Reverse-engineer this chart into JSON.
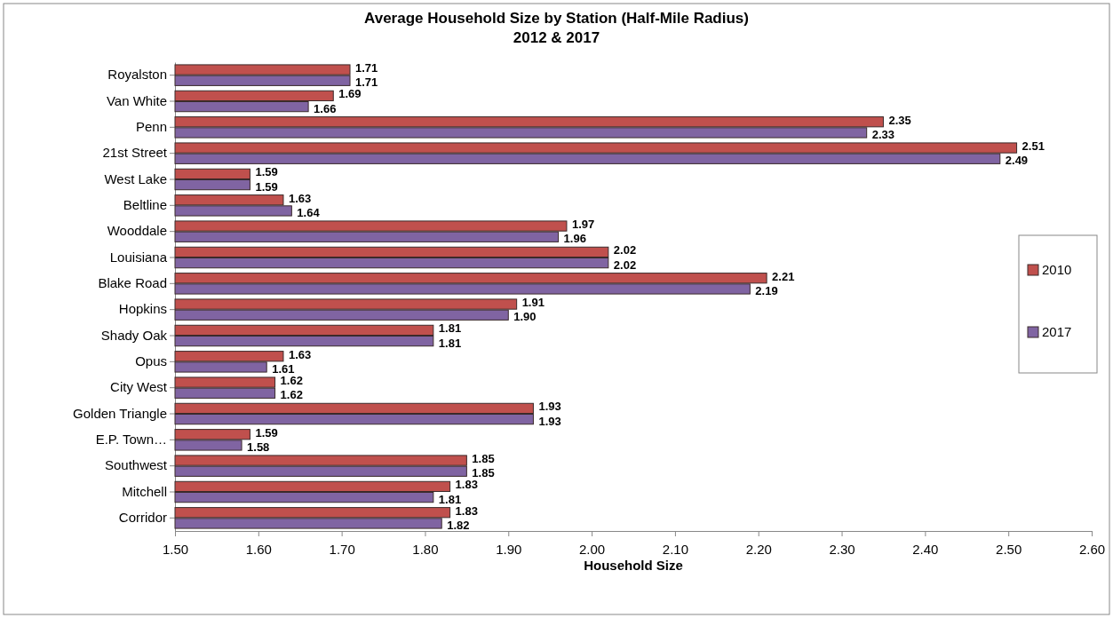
{
  "chart_data": {
    "type": "bar",
    "orientation": "horizontal",
    "title": "Average Household Size by Station (Half-Mile Radius)",
    "subtitle": "2012 & 2017",
    "xlabel": "Household Size",
    "categories": [
      "Royalston",
      "Van White",
      "Penn",
      "21st Street",
      "West Lake",
      "Beltline",
      "Wooddale",
      "Louisiana",
      "Blake Road",
      "Hopkins",
      "Shady Oak",
      "Opus",
      "City West",
      "Golden Triangle",
      "E.P. Town…",
      "Southwest",
      "Mitchell",
      "Corridor"
    ],
    "series": [
      {
        "name": "2010",
        "color": "#c0504d",
        "values": [
          1.71,
          1.69,
          2.35,
          2.51,
          1.59,
          1.63,
          1.97,
          2.02,
          2.21,
          1.91,
          1.81,
          1.63,
          1.62,
          1.93,
          1.59,
          1.85,
          1.83,
          1.83
        ],
        "value_labels": [
          "1.71",
          "1.69",
          "2.35",
          "2.51",
          "1.59",
          "1.63",
          "1.97",
          "2.02",
          "2.21",
          "1.91",
          "1.81",
          "1.63",
          "1.62",
          "1.93",
          "1.59",
          "1.85",
          "1.83",
          "1.83"
        ]
      },
      {
        "name": "2017",
        "color": "#8064a2",
        "values": [
          1.71,
          1.66,
          2.33,
          2.49,
          1.59,
          1.64,
          1.96,
          2.02,
          2.19,
          1.9,
          1.81,
          1.61,
          1.62,
          1.93,
          1.58,
          1.85,
          1.81,
          1.82
        ],
        "value_labels": [
          "1.71",
          "1.66",
          "2.33",
          "2.49",
          "1.59",
          "1.64",
          "1.96",
          "2.02",
          "2.19",
          "1.90",
          "1.81",
          "1.61",
          "1.62",
          "1.93",
          "1.58",
          "1.85",
          "1.81",
          "1.82"
        ]
      }
    ],
    "xlim": [
      1.5,
      2.6
    ],
    "xticks": [
      {
        "value": 1.5,
        "label": "1.50"
      },
      {
        "value": 1.6,
        "label": "1.60"
      },
      {
        "value": 1.7,
        "label": "1.70"
      },
      {
        "value": 1.8,
        "label": "1.80"
      },
      {
        "value": 1.9,
        "label": "1.90"
      },
      {
        "value": 2.0,
        "label": "2.00"
      },
      {
        "value": 2.1,
        "label": "2.10"
      },
      {
        "value": 2.2,
        "label": "2.20"
      },
      {
        "value": 2.3,
        "label": "2.30"
      },
      {
        "value": 2.4,
        "label": "2.40"
      },
      {
        "value": 2.5,
        "label": "2.50"
      },
      {
        "value": 2.6,
        "label": "2.60"
      }
    ],
    "grid": false,
    "legend": "right"
  }
}
